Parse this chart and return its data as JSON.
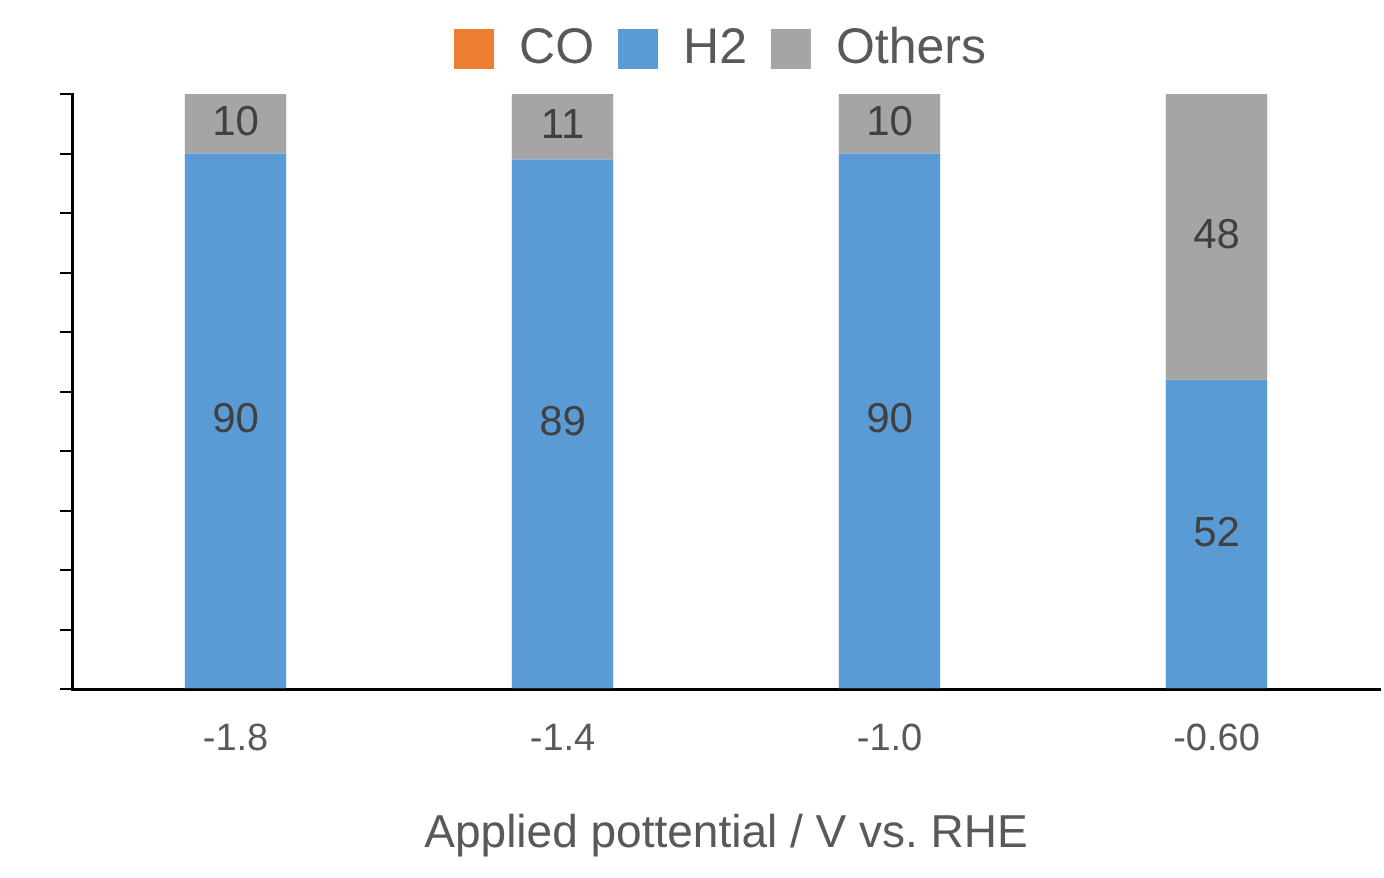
{
  "chart_data": {
    "type": "bar",
    "stacked": true,
    "xlabel": "Applied pottential / V vs. RHE",
    "categories": [
      "-1.8",
      "-1.4",
      "-1.0",
      "-0.60"
    ],
    "series": [
      {
        "name": "CO",
        "color": "#ed7d31",
        "values": [
          0,
          0,
          0,
          0
        ],
        "value_labels": [
          null,
          null,
          null,
          null
        ]
      },
      {
        "name": "H2",
        "color": "#5b9bd5",
        "values": [
          90,
          89,
          90,
          52
        ],
        "value_labels": [
          "90",
          "89",
          "90",
          "52"
        ]
      },
      {
        "name": "Others",
        "color": "#a5a5a5",
        "values": [
          10,
          11,
          10,
          48
        ],
        "value_labels": [
          "10",
          "11",
          "10",
          "48"
        ]
      }
    ],
    "ylim": [
      0,
      100
    ],
    "yticks": [
      {
        "value": 0,
        "label": null
      },
      {
        "value": 10,
        "label": null
      },
      {
        "value": 20,
        "label": null
      },
      {
        "value": 30,
        "label": null
      },
      {
        "value": 40,
        "label": null
      },
      {
        "value": 50,
        "label": null
      },
      {
        "value": 60,
        "label": null
      },
      {
        "value": 70,
        "label": null
      },
      {
        "value": 80,
        "label": null
      },
      {
        "value": 90,
        "label": null
      },
      {
        "value": 100,
        "label": null
      }
    ],
    "tick_labels": "x",
    "grid": false,
    "legend": "top"
  }
}
